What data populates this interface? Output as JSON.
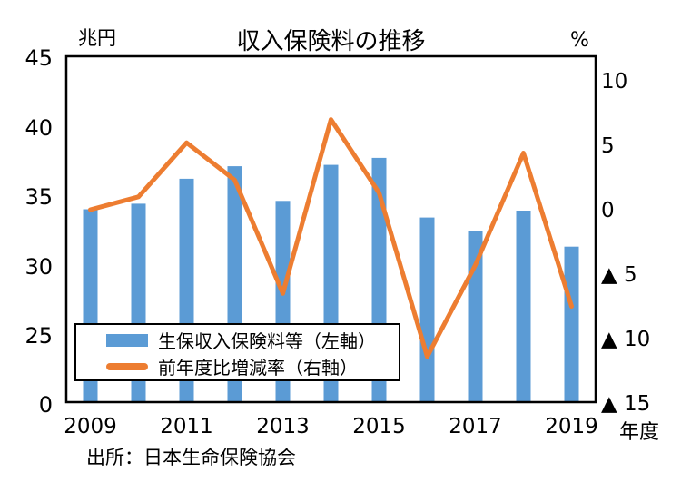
{
  "title": "収入保険料の推移",
  "left_axis": {
    "unit": "兆円",
    "ticks": [
      {
        "label": "45",
        "v": 45
      },
      {
        "label": "40",
        "v": 40
      },
      {
        "label": "35",
        "v": 35
      },
      {
        "label": "30",
        "v": 30
      },
      {
        "label": "25",
        "v": 25
      },
      {
        "label": "0",
        "v": 0
      }
    ]
  },
  "right_axis": {
    "unit": "%",
    "ticks": [
      {
        "label": "10",
        "v": 10
      },
      {
        "label": "5",
        "v": 5
      },
      {
        "label": "0",
        "v": 0
      },
      {
        "label": "▲ 5",
        "v": -5
      },
      {
        "label": "▲ 10",
        "v": -10
      },
      {
        "label": "▲ 15",
        "v": -15
      }
    ]
  },
  "x_axis": {
    "unit_label": "年度",
    "tick_labels": [
      {
        "label": "2009",
        "slot": 0
      },
      {
        "label": "2011",
        "slot": 2
      },
      {
        "label": "2013",
        "slot": 4
      },
      {
        "label": "2015",
        "slot": 6
      },
      {
        "label": "2017",
        "slot": 8
      },
      {
        "label": "2019",
        "slot": 10
      }
    ]
  },
  "legend": [
    {
      "label": "生保収入保険料等（左軸）",
      "type": "bar",
      "color": "#5B9BD5"
    },
    {
      "label": "前年度比増減率（右軸）",
      "type": "line",
      "color": "#ED7D31"
    }
  ],
  "source": "出所：日本生命保険協会",
  "colors": {
    "bar": "#5B9BD5",
    "line": "#ED7D31",
    "axis": "#000000"
  },
  "chart_data": {
    "type": "combo",
    "categories": [
      2009,
      2010,
      2011,
      2012,
      2013,
      2014,
      2015,
      2016,
      2017,
      2018,
      2019
    ],
    "series": [
      {
        "name": "生保収入保険料等（左軸）",
        "type": "bar",
        "axis": "left",
        "unit": "兆円",
        "color": "#5B9BD5",
        "values": [
          34.0,
          34.4,
          36.2,
          37.1,
          34.6,
          37.2,
          37.7,
          33.4,
          32.4,
          33.9,
          31.3
        ]
      },
      {
        "name": "前年度比増減率（右軸）",
        "type": "line",
        "axis": "right",
        "unit": "%",
        "color": "#ED7D31",
        "values": [
          0.0,
          1.0,
          5.2,
          2.3,
          -6.5,
          7.0,
          1.3,
          -11.4,
          -4.3,
          4.4,
          -7.5
        ]
      }
    ],
    "left_axis_ticks": [
      0,
      25,
      30,
      35,
      40,
      45
    ],
    "left_axis_note": "axis compressed between 0 and 25",
    "right_axis_range": [
      -15,
      10
    ],
    "grid": false,
    "legend_position": "inside-bottom-left"
  }
}
